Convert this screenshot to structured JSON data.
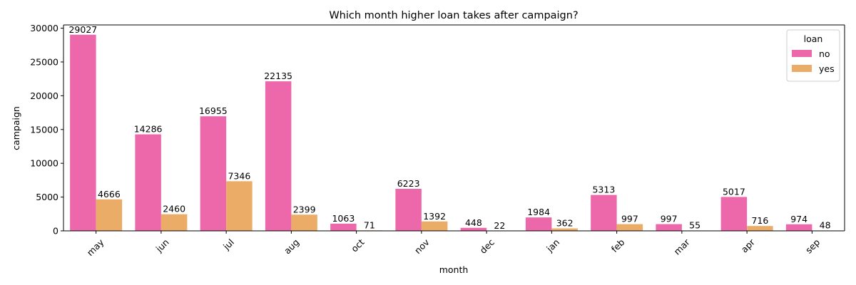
{
  "chart_data": {
    "type": "bar",
    "title": "Which month higher loan takes after campaign?",
    "xlabel": "month",
    "ylabel": "campaign",
    "categories": [
      "may",
      "jun",
      "jul",
      "aug",
      "oct",
      "nov",
      "dec",
      "jan",
      "feb",
      "mar",
      "apr",
      "sep"
    ],
    "series": [
      {
        "name": "no",
        "color": "#ed68ab",
        "values": [
          29027,
          14286,
          16955,
          22135,
          1063,
          6223,
          448,
          1984,
          5313,
          997,
          5017,
          974
        ]
      },
      {
        "name": "yes",
        "color": "#ebac68",
        "values": [
          4666,
          2460,
          7346,
          2399,
          71,
          1392,
          22,
          362,
          997,
          55,
          716,
          48
        ]
      }
    ],
    "ylim": [
      0,
      30479
    ],
    "yticks": [
      0,
      5000,
      10000,
      15000,
      20000,
      25000,
      30000
    ],
    "legend": {
      "title": "loan",
      "position": "top-right"
    },
    "grid": false,
    "xtick_rotation": 45
  }
}
